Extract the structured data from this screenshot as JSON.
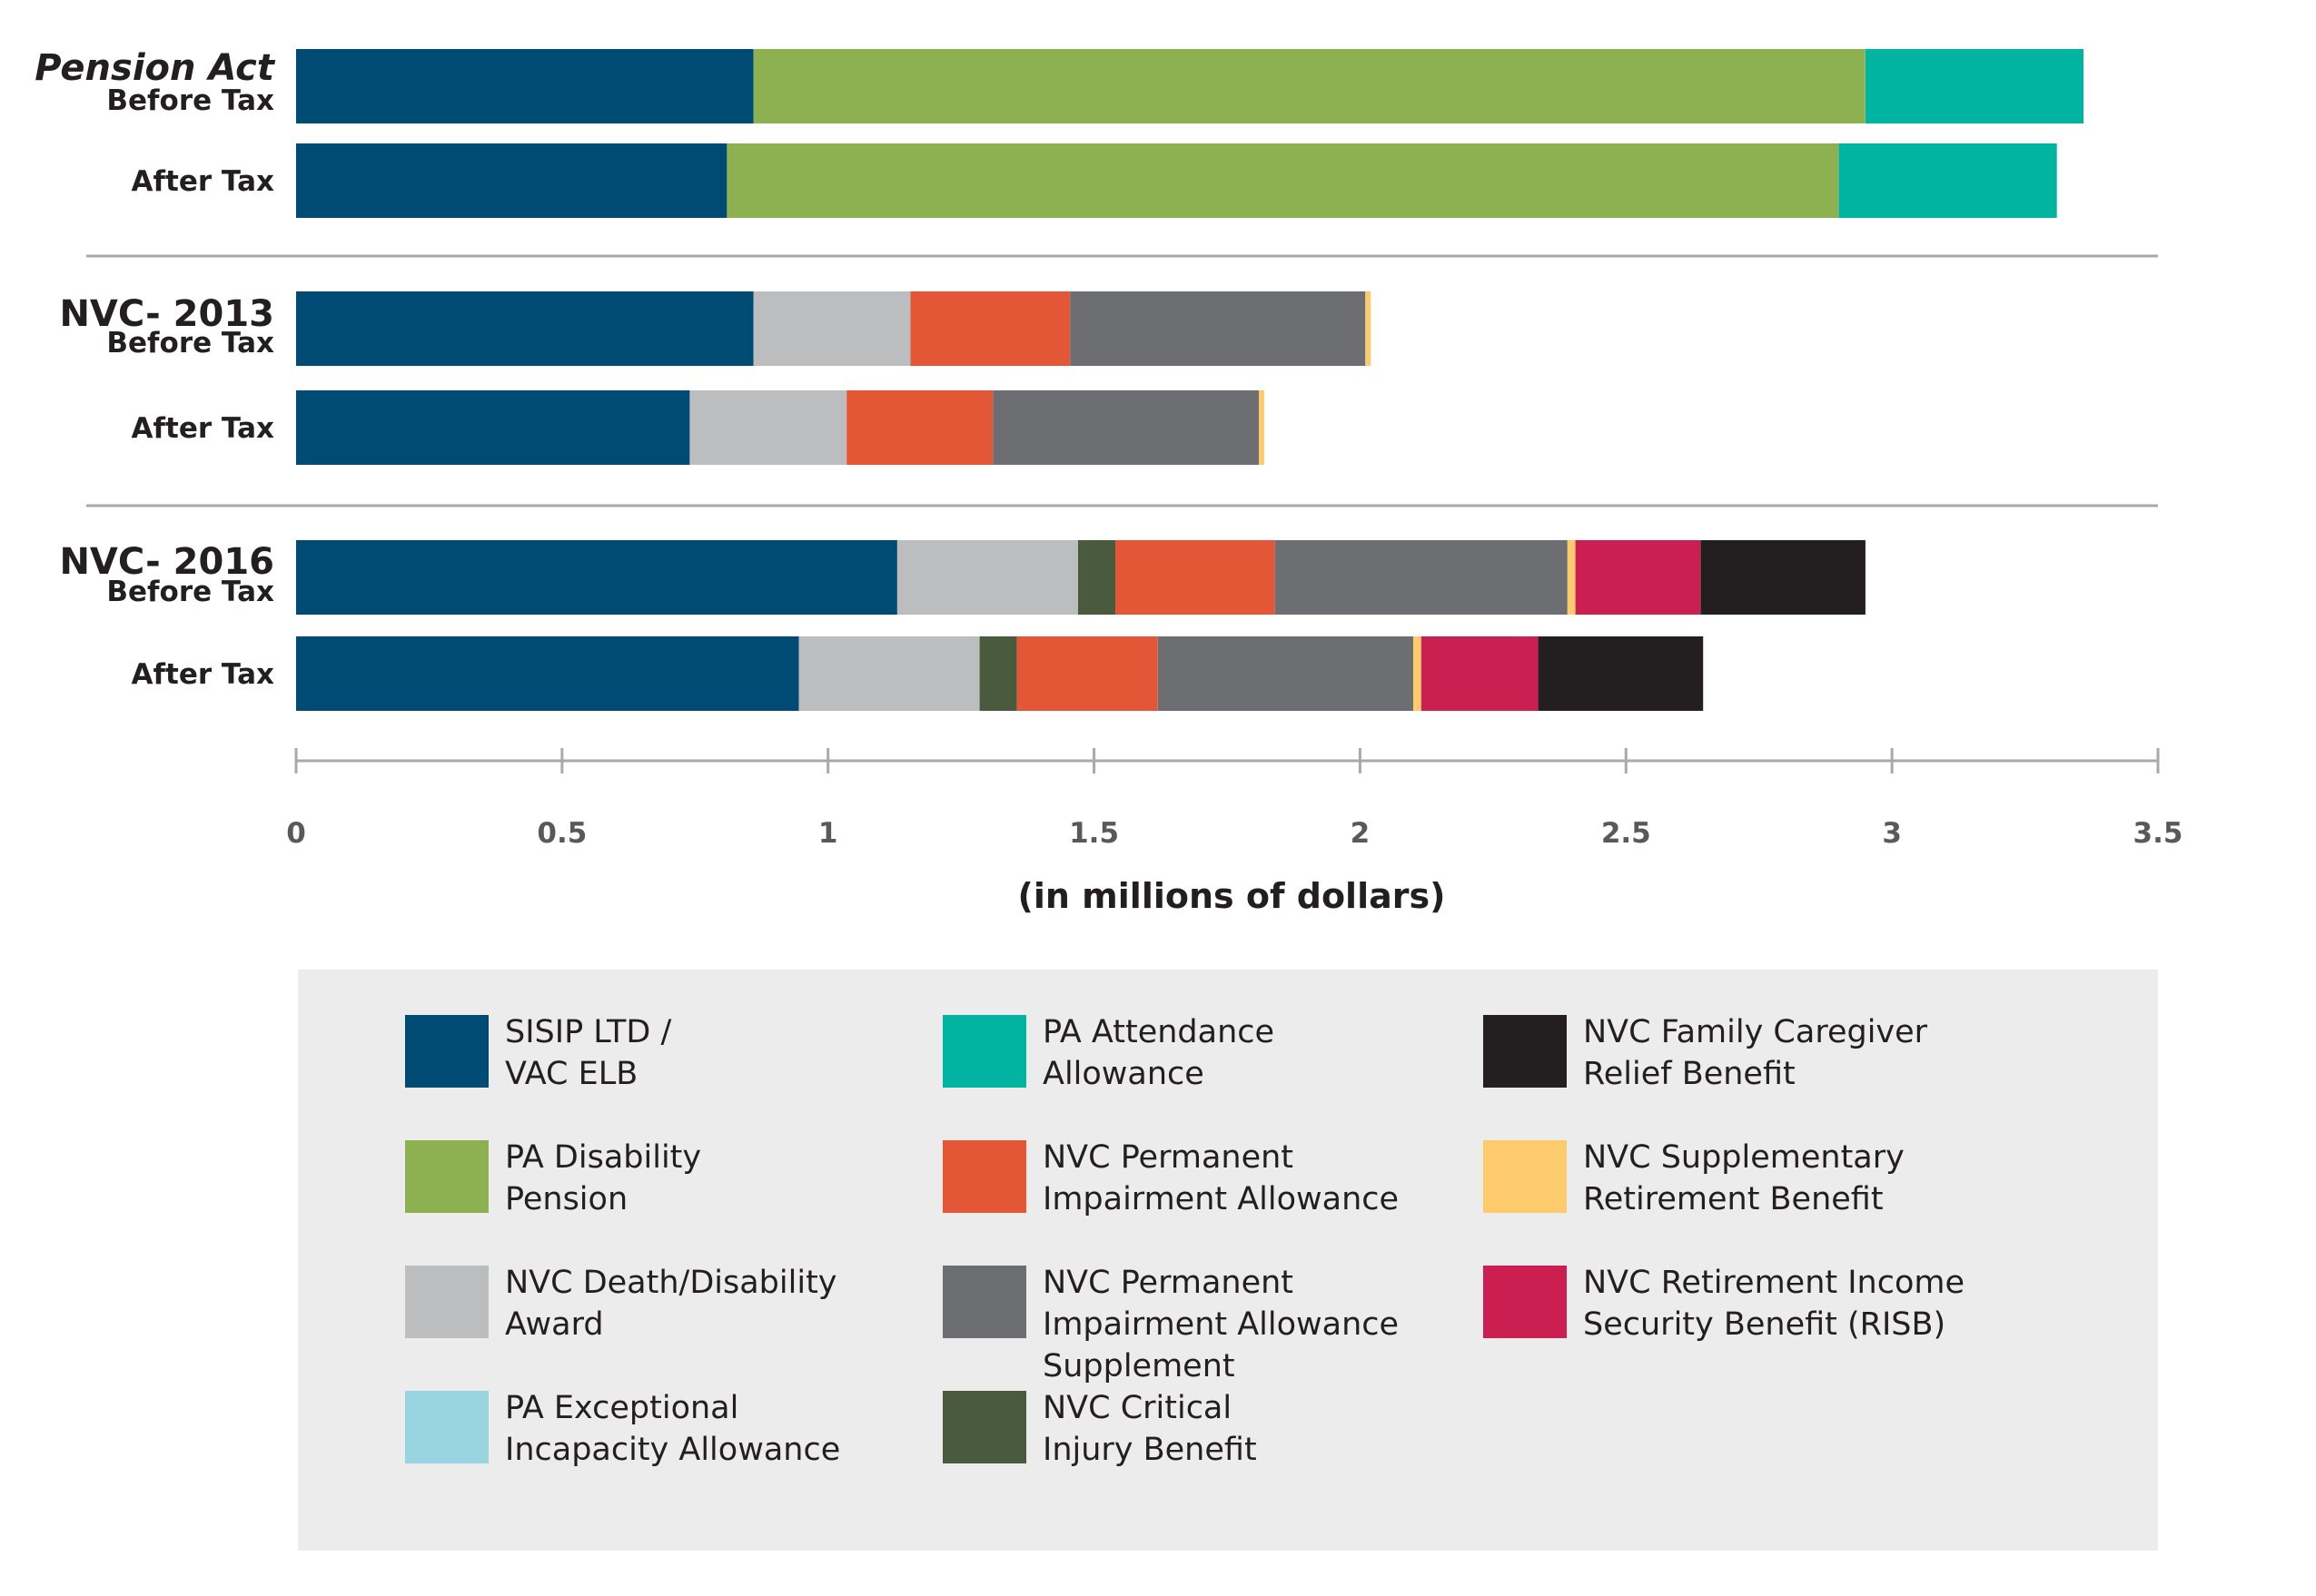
{
  "chart_data": {
    "type": "bar",
    "orientation": "horizontal",
    "stacked": true,
    "xlabel": "(in millions of dollars)",
    "xlim": [
      0,
      3.5
    ],
    "x_ticks": [
      "0",
      "0.5",
      "1",
      "1.5",
      "2",
      "2.5",
      "3",
      "3.5"
    ],
    "groups": [
      {
        "name": "Pension Act",
        "bars": [
          {
            "label": "Before Tax",
            "segments": [
              {
                "series": "sisip",
                "value": 0.86
              },
              {
                "series": "pa_disability",
                "value": 2.09
              },
              {
                "series": "pa_attendance",
                "value": 0.41
              }
            ]
          },
          {
            "label": "After Tax",
            "segments": [
              {
                "series": "sisip",
                "value": 0.81
              },
              {
                "series": "pa_disability",
                "value": 2.09
              },
              {
                "series": "pa_attendance",
                "value": 0.41
              }
            ]
          }
        ]
      },
      {
        "name": "NVC- 2013",
        "bars": [
          {
            "label": "Before Tax",
            "segments": [
              {
                "series": "sisip",
                "value": 0.86
              },
              {
                "series": "nvc_death",
                "value": 0.295
              },
              {
                "series": "nvc_pia",
                "value": 0.3
              },
              {
                "series": "nvc_pias",
                "value": 0.555
              },
              {
                "series": "nvc_srb",
                "value": 0.01
              }
            ]
          },
          {
            "label": "After Tax",
            "segments": [
              {
                "series": "sisip",
                "value": 0.74
              },
              {
                "series": "nvc_death",
                "value": 0.295
              },
              {
                "series": "nvc_pia",
                "value": 0.275
              },
              {
                "series": "nvc_pias",
                "value": 0.5
              },
              {
                "series": "nvc_srb",
                "value": 0.01
              }
            ]
          }
        ]
      },
      {
        "name": "NVC- 2016",
        "bars": [
          {
            "label": "Before Tax",
            "segments": [
              {
                "series": "sisip",
                "value": 1.13
              },
              {
                "series": "nvc_death",
                "value": 0.34
              },
              {
                "series": "nvc_cib",
                "value": 0.07
              },
              {
                "series": "nvc_pia",
                "value": 0.3
              },
              {
                "series": "nvc_pias",
                "value": 0.55
              },
              {
                "series": "nvc_srb",
                "value": 0.015
              },
              {
                "series": "nvc_risb",
                "value": 0.235
              },
              {
                "series": "nvc_fcrb",
                "value": 0.31
              }
            ]
          },
          {
            "label": "After Tax",
            "segments": [
              {
                "series": "sisip",
                "value": 0.945
              },
              {
                "series": "nvc_death",
                "value": 0.34
              },
              {
                "series": "nvc_cib",
                "value": 0.07
              },
              {
                "series": "nvc_pia",
                "value": 0.265
              },
              {
                "series": "nvc_pias",
                "value": 0.48
              },
              {
                "series": "nvc_srb",
                "value": 0.015
              },
              {
                "series": "nvc_risb",
                "value": 0.22
              },
              {
                "series": "nvc_fcrb",
                "value": 0.31
              }
            ]
          }
        ]
      }
    ],
    "series": [
      {
        "key": "sisip",
        "name": "SISIP LTD / VAC ELB",
        "color": "#004b74"
      },
      {
        "key": "pa_disability",
        "name": "PA Disability Pension",
        "color": "#8db051"
      },
      {
        "key": "nvc_death",
        "name": "NVC Death/Disability Award",
        "color": "#bcbdbf"
      },
      {
        "key": "pa_eia",
        "name": "PA Exceptional Incapacity Allowance",
        "color": "#98d5e0"
      },
      {
        "key": "pa_attendance",
        "name": "PA Attendance Allowance",
        "color": "#00b4a2"
      },
      {
        "key": "nvc_pia",
        "name": "NVC Permanent Impairment Allowance",
        "color": "#e45736"
      },
      {
        "key": "nvc_pias",
        "name": "NVC Permanent Impairment Allowance Supplement",
        "color": "#6d6e71"
      },
      {
        "key": "nvc_cib",
        "name": "NVC Critical Injury Benefit",
        "color": "#4a5a3c"
      },
      {
        "key": "nvc_fcrb",
        "name": "NVC Family Caregiver Relief Benefit",
        "color": "#231f20"
      },
      {
        "key": "nvc_srb",
        "name": "NVC Supplementary Retirement Benefit",
        "color": "#fdcb6b"
      },
      {
        "key": "nvc_risb",
        "name": "NVC Retirement Income Security Benefit (RISB)",
        "color": "#cc1f51"
      }
    ],
    "legend": {
      "placement": "bottom",
      "columns": [
        [
          {
            "series": "sisip",
            "lines": [
              "SISIP LTD /",
              "VAC ELB"
            ]
          },
          {
            "series": "pa_disability",
            "lines": [
              "PA Disability",
              "Pension"
            ]
          },
          {
            "series": "nvc_death",
            "lines": [
              "NVC Death/Disability",
              "Award"
            ]
          },
          {
            "series": "pa_eia",
            "lines": [
              "PA Exceptional",
              "Incapacity Allowance"
            ]
          }
        ],
        [
          {
            "series": "pa_attendance",
            "lines": [
              "PA Attendance",
              "Allowance"
            ]
          },
          {
            "series": "nvc_pia",
            "lines": [
              "NVC Permanent",
              "Impairment Allowance"
            ]
          },
          {
            "series": "nvc_pias",
            "lines": [
              "NVC Permanent",
              "Impairment Allowance",
              "Supplement"
            ]
          },
          {
            "series": "nvc_cib",
            "lines": [
              "NVC Critical",
              "Injury Benefit"
            ]
          }
        ],
        [
          {
            "series": "nvc_fcrb",
            "lines": [
              "NVC Family Caregiver",
              "Relief Benefit"
            ]
          },
          {
            "series": "nvc_srb",
            "lines": [
              "NVC Supplementary",
              "Retirement Benefit"
            ]
          },
          {
            "series": "nvc_risb",
            "lines": [
              "NVC Retirement Income",
              "Security Benefit (RISB)"
            ]
          }
        ]
      ]
    },
    "grid": false
  }
}
